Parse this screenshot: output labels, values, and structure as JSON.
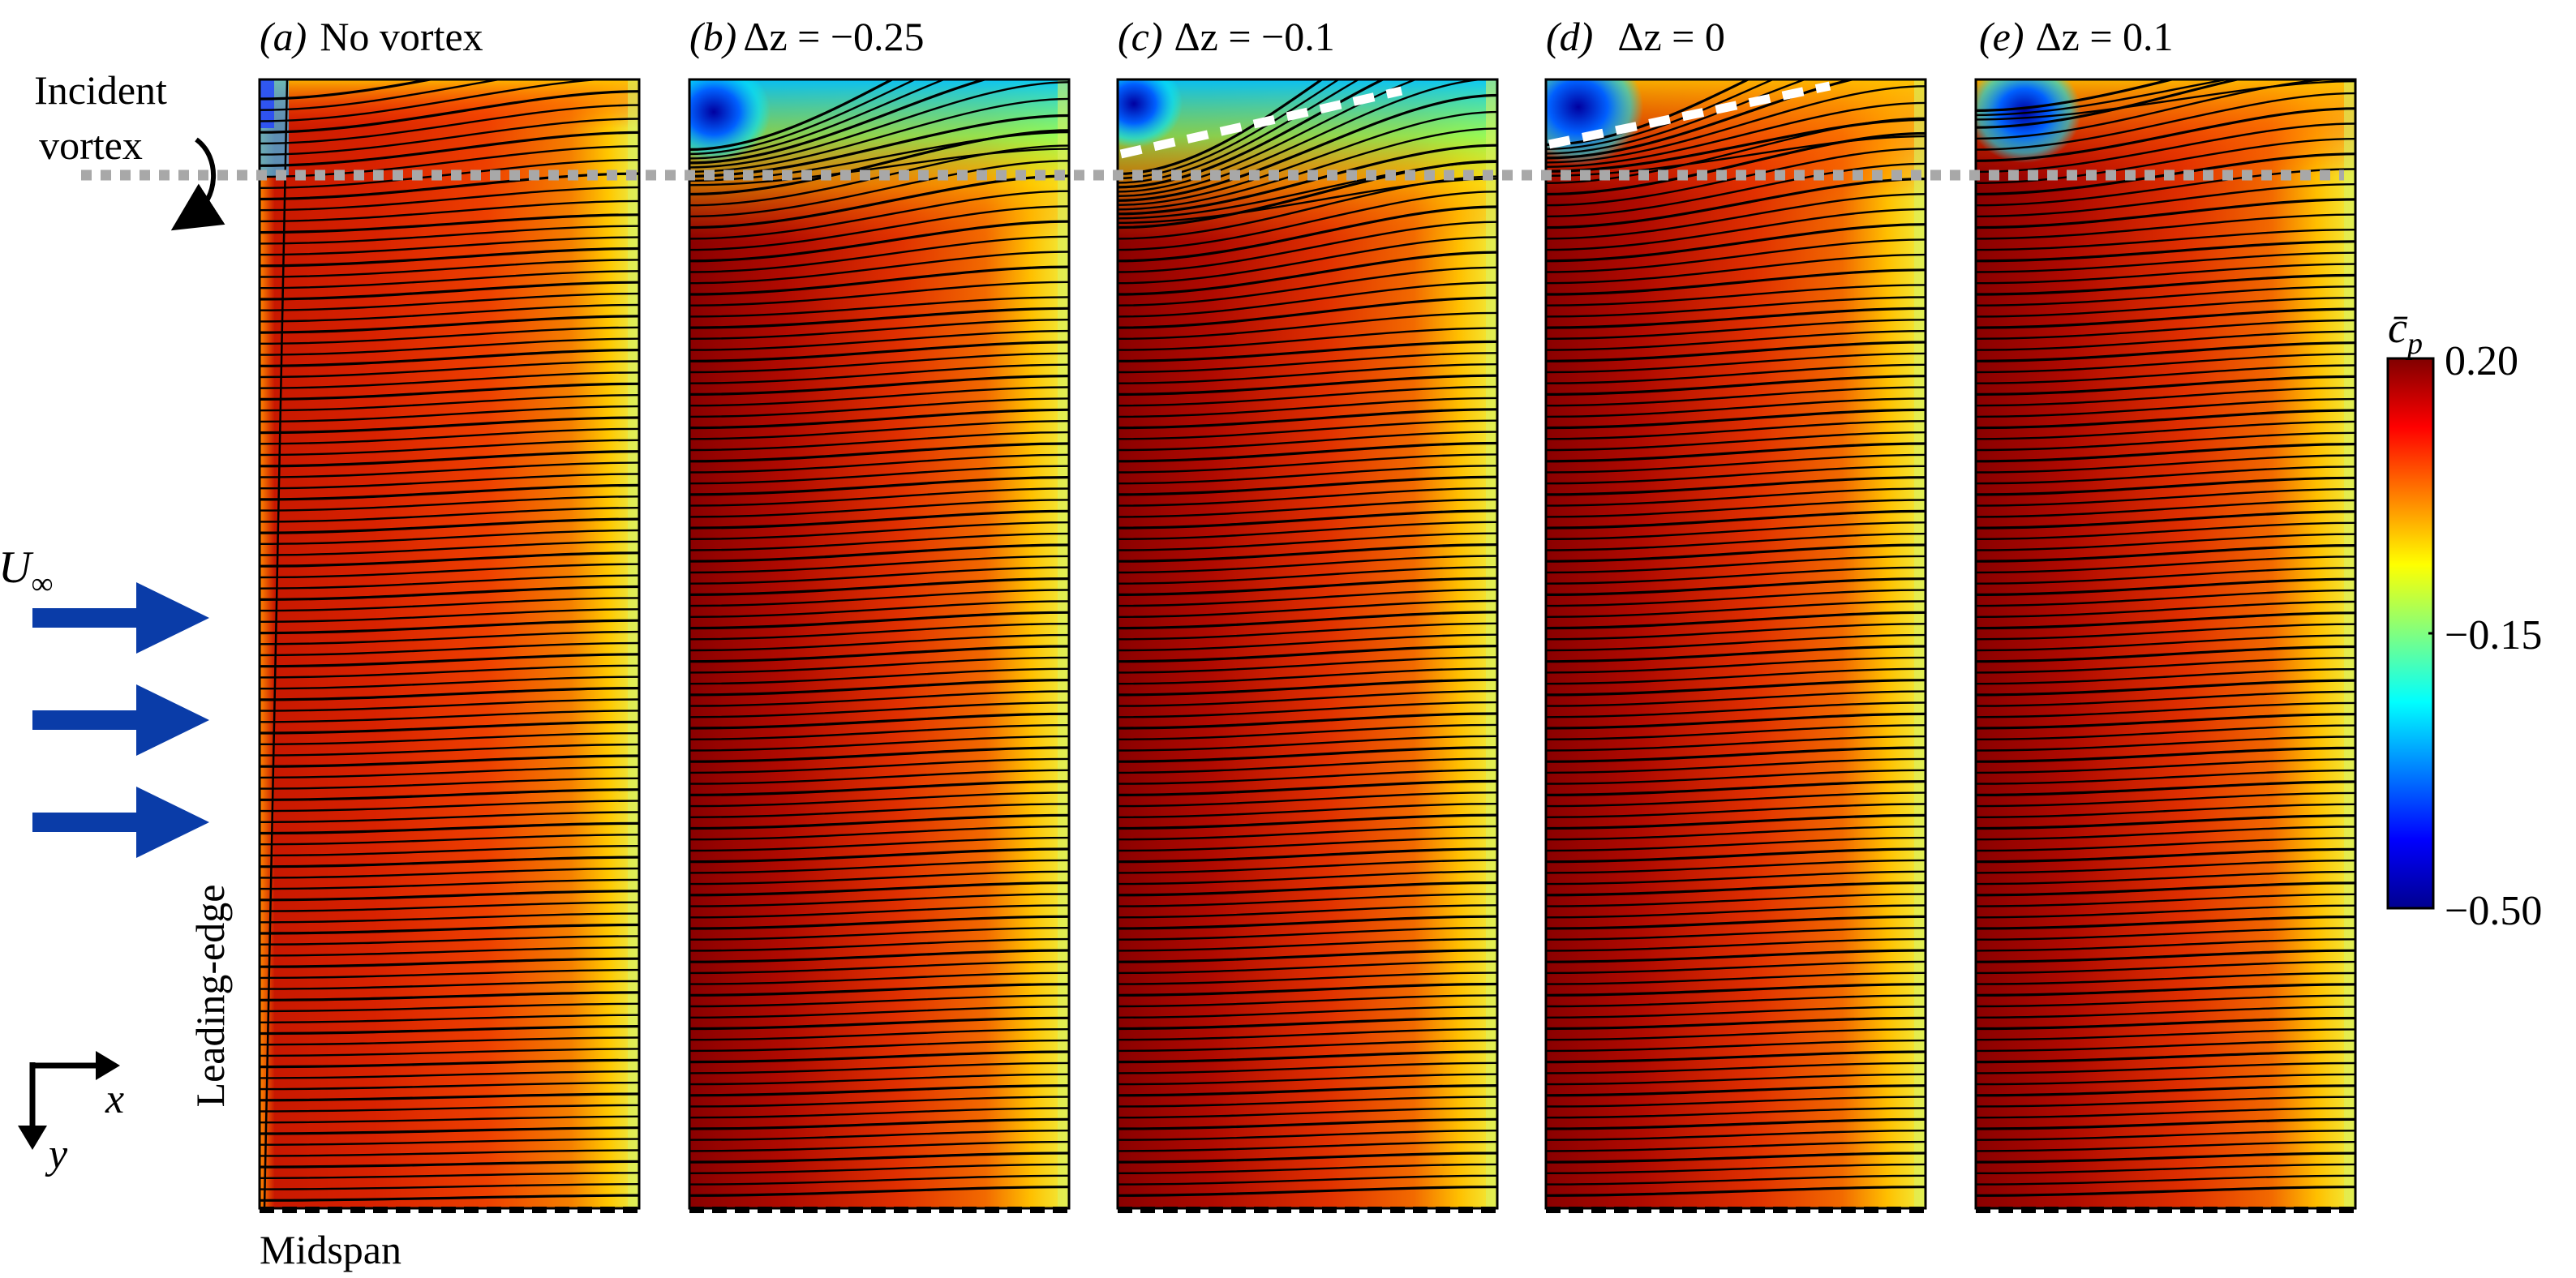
{
  "figure": {
    "panels": [
      {
        "id": "a",
        "label": "(a)",
        "title": "No vortex",
        "vortex_case": "none",
        "shows_vortex_trace": false
      },
      {
        "id": "b",
        "label": "(b)",
        "title": "Δz = −0.25",
        "vortex_case": "dz_-0.25",
        "shows_vortex_trace": false
      },
      {
        "id": "c",
        "label": "(c)",
        "title": "Δz = −0.1",
        "vortex_case": "dz_-0.1",
        "shows_vortex_trace": true
      },
      {
        "id": "d",
        "label": "(d)",
        "title": "Δz = 0",
        "vortex_case": "dz_0",
        "shows_vortex_trace": true
      },
      {
        "id": "e",
        "label": "(e)",
        "title": "Δz = 0.1",
        "vortex_case": "dz_0.1",
        "shows_vortex_trace": false
      }
    ],
    "annotations": {
      "incident_vortex_line1": "Incident",
      "incident_vortex_line2": "vortex",
      "freestream_symbol": "U",
      "freestream_subscript": "∞",
      "leading_edge": "Leading-edge",
      "midspan": "Midspan",
      "axis_x": "x",
      "axis_y": "y"
    },
    "colorbar": {
      "label": "c̄",
      "label_subscript": "p",
      "max": 0.2,
      "mid": -0.15,
      "min": -0.5,
      "max_label": "0.20",
      "mid_label": "−0.15",
      "min_label": "−0.50",
      "colormap": "jet"
    },
    "colors": {
      "arrow": "#0a3ca8",
      "vortex_line": "#a8a8a8",
      "streamline": "#000000",
      "vortex_trace": "#ffffff"
    },
    "icons": [
      "flow-arrow-icon",
      "rotation-arrow-icon",
      "axes-icon"
    ]
  }
}
